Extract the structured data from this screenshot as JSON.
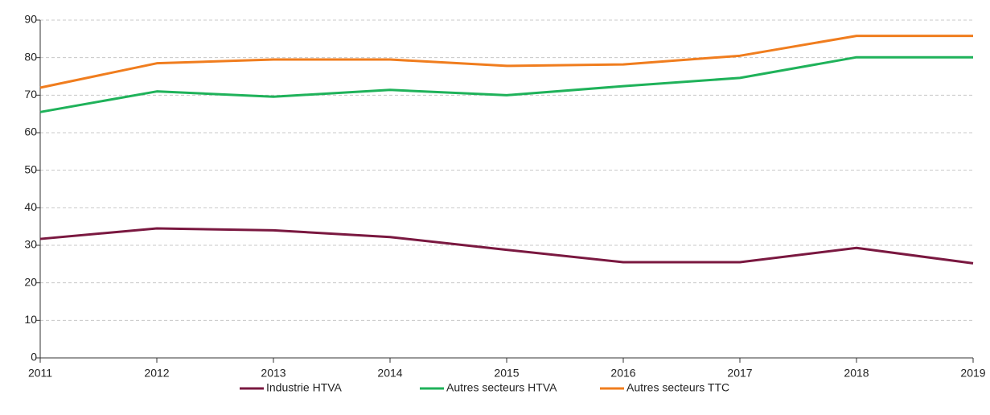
{
  "chart_data": {
    "type": "line",
    "x": [
      2011,
      2012,
      2013,
      2014,
      2015,
      2016,
      2017,
      2018,
      2019
    ],
    "series": [
      {
        "name": "Industrie HTVA",
        "color": "#7a1840",
        "values": [
          31.7,
          34.5,
          34,
          32.2,
          28.8,
          25.5,
          25.5,
          29.3,
          25.2
        ]
      },
      {
        "name": "Autres secteurs HTVA",
        "color": "#1fb25a",
        "values": [
          65.5,
          71,
          69.6,
          71.4,
          70,
          72.4,
          74.6,
          80.1,
          80.1
        ]
      },
      {
        "name": "Autres secteurs TTC",
        "color": "#f07d1e",
        "values": [
          72,
          78.5,
          79.5,
          79.5,
          77.8,
          78.2,
          80.5,
          85.8,
          85.8
        ]
      }
    ],
    "xlim": [
      2011,
      2019
    ],
    "xticks": [
      2011,
      2012,
      2013,
      2014,
      2015,
      2016,
      2017,
      2018,
      2019
    ],
    "ylim": [
      0,
      90
    ],
    "yticks": [
      0,
      10,
      20,
      30,
      40,
      50,
      60,
      70,
      80,
      90
    ],
    "grid": true,
    "legend": "bottom"
  }
}
